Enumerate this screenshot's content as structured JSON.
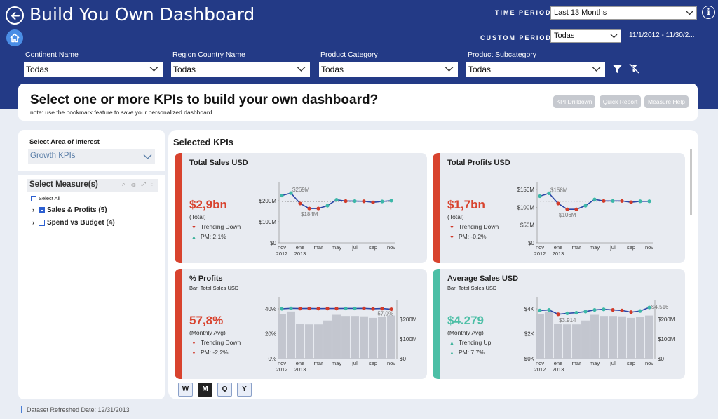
{
  "header": {
    "title": "Build You Own Dashboard",
    "time_period_label": "TIME PERIOD",
    "time_period_value": "Last 13 Months",
    "custom_period_label": "CUSTOM PERIOD",
    "custom_period_value": "Todas",
    "date_range": "11/1/2012 - 11/30/2...",
    "filters": [
      {
        "label": "Continent Name",
        "value": "Todas"
      },
      {
        "label": "Region Country Name",
        "value": "Todas"
      },
      {
        "label": "Product Category",
        "value": "Todas"
      },
      {
        "label": "Product Subcategory",
        "value": "Todas"
      }
    ]
  },
  "banner": {
    "title": "Select one or more KPIs to build your own dashboard?",
    "note": "note: use the bookmark feature to save your personalized dashboard",
    "buttons": [
      "KPI Drilldown",
      "Quick Report",
      "Measure Help"
    ]
  },
  "sidebar": {
    "area_label": "Select Area of Interest",
    "area_value": "Growth KPIs",
    "measure_title": "Select Measure(s)",
    "select_all": "Select All",
    "items": [
      "Sales & Profits (5)",
      "Spend vs Budget (4)"
    ]
  },
  "main": {
    "section_title": "Selected KPIs",
    "granularity": [
      "W",
      "M",
      "Q",
      "Y"
    ],
    "granularity_active": "M"
  },
  "colors": {
    "down": "#d8432e",
    "up": "#4cbfa6",
    "line": "#2b46a6",
    "dot_up": "#3cb7a8",
    "dot_down": "#d23b2a",
    "bar": "#c3c6cf"
  },
  "cards": [
    {
      "title": "Total Sales USD",
      "subtitle": "",
      "value": "$2,9bn",
      "caption": "(Total)",
      "trend": "Trending Down",
      "trend_dir": "down",
      "pm": "PM: 2,1%",
      "pm_dir": "up",
      "accent": "#d8432e",
      "chart": {
        "left_ticks": [
          "$200M",
          "$100M",
          "$0"
        ],
        "right_ticks": [],
        "month_labels": [
          "nov",
          "ene",
          "mar",
          "may",
          "jul",
          "sep",
          "nov"
        ],
        "year_labels": [
          "2012",
          "2013"
        ],
        "ann_high": "$269M",
        "ann_low": "$184M",
        "ann_end": "",
        "ylim": [
          0,
          310
        ],
        "line": [
          255,
          268,
          212,
          185,
          185,
          200,
          232,
          225,
          225,
          224,
          218,
          223,
          227
        ],
        "dirs": [
          "u",
          "u",
          "d",
          "d",
          "d",
          "u",
          "u",
          "d",
          "u",
          "d",
          "d",
          "u",
          "u"
        ],
        "bars": [],
        "ref": 223
      }
    },
    {
      "title": "Total Profits USD",
      "subtitle": "",
      "value": "$1,7bn",
      "caption": "(Total)",
      "trend": "Trending Down",
      "trend_dir": "down",
      "pm": "PM: -0,2%",
      "pm_dir": "down",
      "accent": "#d8432e",
      "chart": {
        "left_ticks": [
          "$150M",
          "$100M",
          "$50M",
          "$0"
        ],
        "right_ticks": [],
        "month_labels": [
          "nov",
          "ene",
          "mar",
          "may",
          "jul",
          "sep",
          "nov"
        ],
        "year_labels": [
          "2012",
          "2013"
        ],
        "ann_high": "$158M",
        "ann_low": "$106M",
        "ann_end": "",
        "ylim": [
          0,
          180
        ],
        "line": [
          146,
          155,
          123,
          105,
          105,
          116,
          136,
          131,
          131,
          131,
          127,
          130,
          130
        ],
        "dirs": [
          "u",
          "u",
          "d",
          "d",
          "d",
          "u",
          "u",
          "d",
          "u",
          "d",
          "d",
          "u",
          "u"
        ],
        "bars": [],
        "ref": 130
      }
    },
    {
      "title": "% Profits",
      "subtitle": "Bar: Total Sales USD",
      "value": "57,8%",
      "caption": "(Monthly Avg)",
      "trend": "Trending Down",
      "trend_dir": "down",
      "pm": "PM: -2,2%",
      "pm_dir": "down",
      "accent": "#d8432e",
      "chart": {
        "left_ticks": [
          "40%",
          "20%",
          "0%"
        ],
        "right_ticks": [
          "$200M",
          "$100M",
          "$0"
        ],
        "month_labels": [
          "nov",
          "ene",
          "mar",
          "may",
          "jul",
          "sep",
          "nov"
        ],
        "year_labels": [
          "2012",
          "2013"
        ],
        "ann_high": "",
        "ann_low": "",
        "ann_end": "57,0%",
        "ylim": [
          0,
          68
        ],
        "line": [
          57.5,
          58,
          57.8,
          57.9,
          57.7,
          57.8,
          57.8,
          57.9,
          57.9,
          58,
          57.5,
          57.8,
          57.0
        ],
        "dirs": [
          "u",
          "u",
          "d",
          "d",
          "d",
          "d",
          "d",
          "u",
          "u",
          "d",
          "d",
          "d",
          "d"
        ],
        "bar_max": 270,
        "bars": [
          232,
          245,
          182,
          178,
          178,
          198,
          228,
          222,
          222,
          220,
          212,
          218,
          224
        ],
        "ref": null
      }
    },
    {
      "title": "Average Sales USD",
      "subtitle": "Bar: Total Sales USD",
      "value": "$4.279",
      "caption": "(Monthly Avg)",
      "trend": "Trending Up",
      "trend_dir": "up",
      "pm": "PM: 7,7%",
      "pm_dir": "up",
      "accent": "#4cbfa6",
      "chart": {
        "left_ticks": [
          "$4K",
          "$2K",
          "$0K"
        ],
        "right_ticks": [
          "$200M",
          "$100M",
          "$0"
        ],
        "month_labels": [
          "nov",
          "ene",
          "mar",
          "may",
          "jul",
          "sep",
          "nov"
        ],
        "year_labels": [
          "2012",
          "2013"
        ],
        "ann_high": "",
        "ann_low": "$3.914",
        "ann_end": "$4.516",
        "ylim": [
          0,
          5200
        ],
        "line": [
          4250,
          4300,
          3914,
          4000,
          4050,
          4150,
          4300,
          4350,
          4300,
          4250,
          4100,
          4200,
          4516
        ],
        "dirs": [
          "u",
          "u",
          "d",
          "u",
          "u",
          "u",
          "u",
          "u",
          "d",
          "d",
          "d",
          "u",
          "u"
        ],
        "bar_max": 270,
        "bars": [
          232,
          245,
          182,
          178,
          178,
          198,
          228,
          222,
          222,
          220,
          212,
          218,
          224
        ],
        "ref": 4300
      }
    }
  ],
  "footer": "Dataset Refreshed Date: 12/31/2013"
}
